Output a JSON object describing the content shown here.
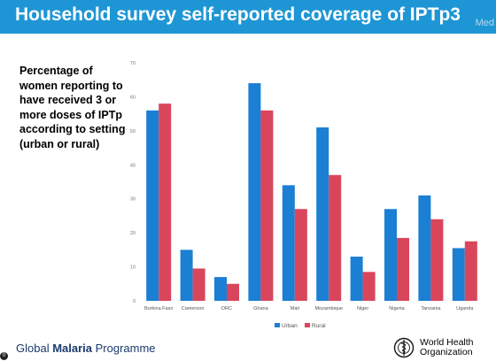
{
  "header": {
    "title": "Household survey self-reported coverage of IPTp3",
    "watermark": "Med"
  },
  "description": "Percentage of women reporting to have received 3 or more doses of IPTp according to setting (urban or rural)",
  "chart_data": {
    "type": "bar",
    "categories": [
      "Burkina Faso",
      "Cameroon",
      "DRC",
      "Ghana",
      "Mali",
      "Mozambique",
      "Niger",
      "Nigeria",
      "Tanzania",
      "Uganda"
    ],
    "series": [
      {
        "name": "Urban",
        "values": [
          56,
          15,
          7,
          64,
          34,
          51,
          13,
          27,
          31,
          15.5
        ],
        "color": "#1b7fd4"
      },
      {
        "name": "Rural",
        "values": [
          58,
          9.5,
          5,
          56,
          27,
          37,
          8.5,
          18.5,
          24,
          17.5
        ],
        "color": "#d9465c"
      }
    ],
    "yticks": [
      0,
      10,
      20,
      30,
      40,
      50,
      60,
      70
    ],
    "ylim": [
      0,
      70
    ],
    "grid": false,
    "legend": "bottom-center",
    "xlabel": "",
    "ylabel": ""
  },
  "footer": {
    "programme_prefix": "Global ",
    "programme_bold": "Malaria",
    "programme_suffix": " Programme",
    "page_marker": "0",
    "org_line1": "World Health",
    "org_line2": "Organization"
  },
  "colors": {
    "title_bar": "#1e96d5",
    "urban": "#1b7fd4",
    "rural": "#d9465c"
  }
}
